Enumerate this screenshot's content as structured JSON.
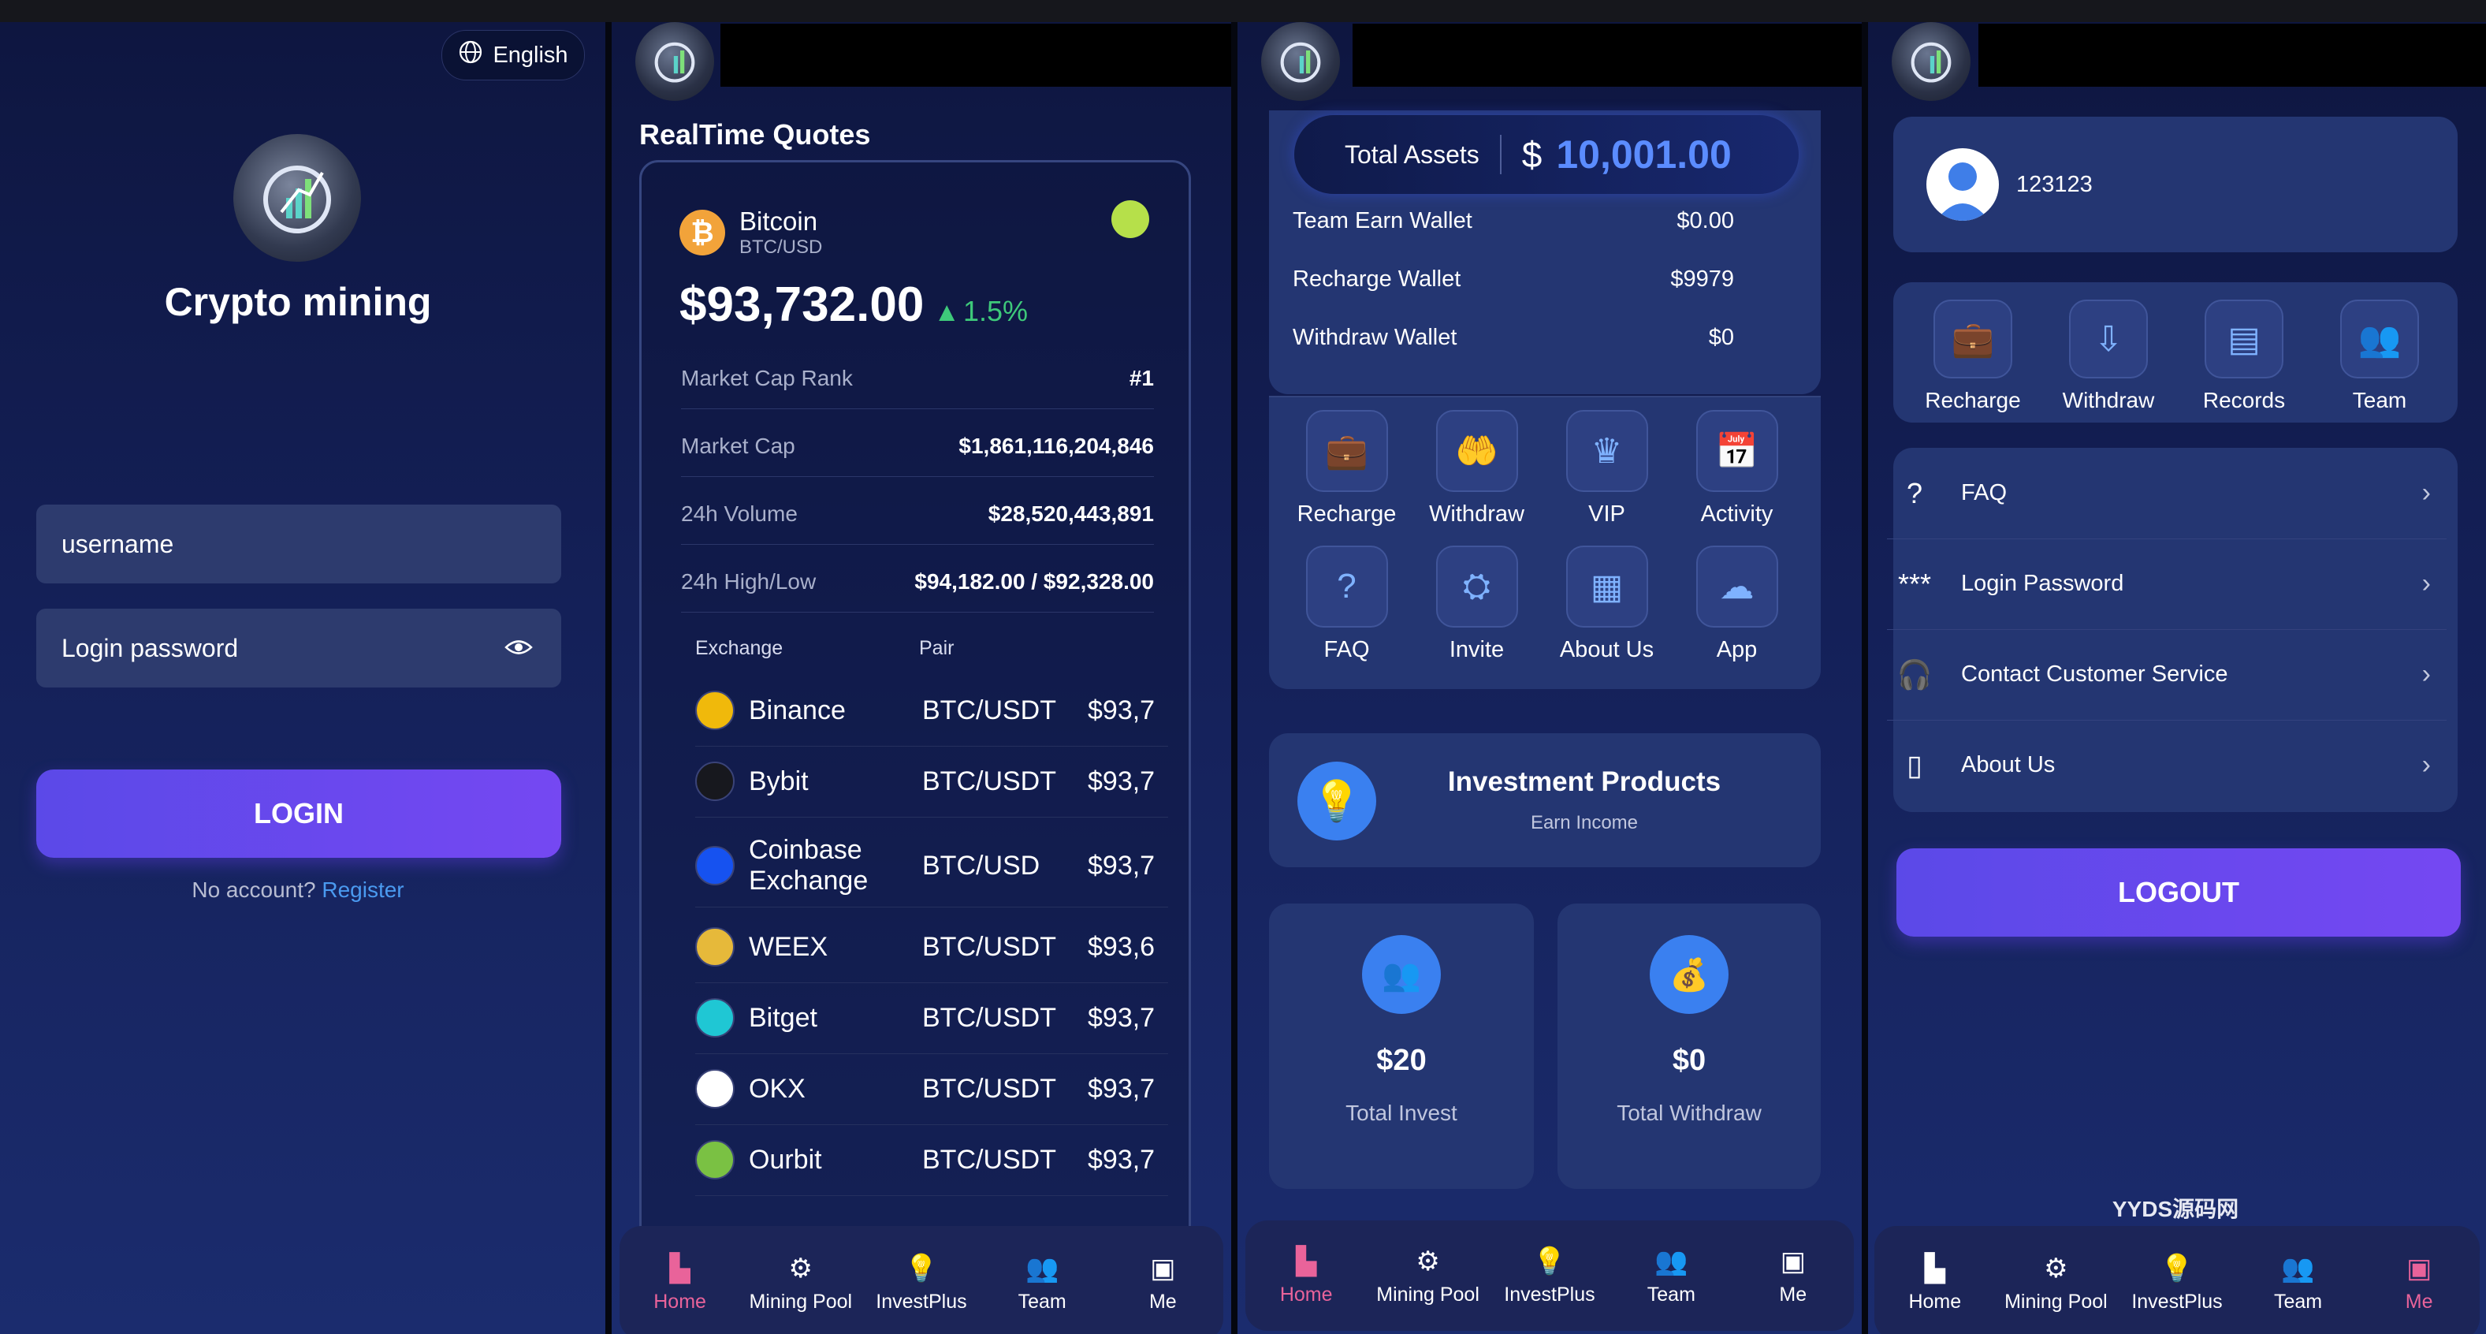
{
  "login": {
    "language": "English",
    "app_title": "Crypto mining",
    "username_placeholder": "username",
    "password_placeholder": "Login password",
    "login_button": "LOGIN",
    "no_account": "No account?",
    "register_link": "Register"
  },
  "quotes": {
    "heading": "RealTime Quotes",
    "coin_name": "Bitcoin",
    "coin_pair": "BTC/USD",
    "price": "$93,732.00",
    "change": "1.5%",
    "stats": [
      {
        "label": "Market Cap Rank",
        "value": "#1"
      },
      {
        "label": "Market Cap",
        "value": "$1,861,116,204,846"
      },
      {
        "label": "24h Volume",
        "value": "$28,520,443,891"
      },
      {
        "label": "24h High/Low",
        "value": "$94,182.00 / $92,328.00"
      }
    ],
    "exchange_header": "Exchange",
    "pair_header": "Pair",
    "exchanges": [
      {
        "name": "Binance",
        "name2": "",
        "pair": "BTC/USDT",
        "price": "$93,7",
        "icon": "binance-icon",
        "color": "#f0b90b"
      },
      {
        "name": "Bybit",
        "name2": "",
        "pair": "BTC/USDT",
        "price": "$93,7",
        "icon": "bybit-icon",
        "color": "#17181e"
      },
      {
        "name": "Coinbase",
        "name2": "Exchange",
        "pair": "BTC/USD",
        "price": "$93,7",
        "icon": "coinbase-icon",
        "color": "#1652f0"
      },
      {
        "name": "WEEX",
        "name2": "",
        "pair": "BTC/USDT",
        "price": "$93,6",
        "icon": "weex-icon",
        "color": "#e6b93a"
      },
      {
        "name": "Bitget",
        "name2": "",
        "pair": "BTC/USDT",
        "price": "$93,7",
        "icon": "bitget-icon",
        "color": "#1fc7d4"
      },
      {
        "name": "OKX",
        "name2": "",
        "pair": "BTC/USDT",
        "price": "$93,7",
        "icon": "okx-icon",
        "color": "#ffffff"
      },
      {
        "name": "Ourbit",
        "name2": "",
        "pair": "BTC/USDT",
        "price": "$93,7",
        "icon": "ourbit-icon",
        "color": "#7ac143"
      }
    ]
  },
  "nav": {
    "home": "Home",
    "mining_pool": "Mining Pool",
    "investplus": "InvestPlus",
    "team": "Team",
    "me": "Me"
  },
  "home": {
    "total_assets_label": "Total Assets",
    "currency": "$",
    "total_assets_value": "10,001.00",
    "wallets": [
      {
        "label": "Team Earn Wallet",
        "value": "$0.00"
      },
      {
        "label": "Recharge Wallet",
        "value": "$9979"
      },
      {
        "label": "Withdraw Wallet",
        "value": "$0"
      }
    ],
    "actions": [
      {
        "label": "Recharge",
        "icon": "wallet-bag-icon"
      },
      {
        "label": "Withdraw",
        "icon": "hand-money-icon"
      },
      {
        "label": "VIP",
        "icon": "crown-icon"
      },
      {
        "label": "Activity",
        "icon": "calendar-star-icon"
      },
      {
        "label": "FAQ",
        "icon": "question-icon"
      },
      {
        "label": "Invite",
        "icon": "invite-users-icon"
      },
      {
        "label": "About Us",
        "icon": "building-icon"
      },
      {
        "label": "App",
        "icon": "cloud-download-icon"
      }
    ],
    "invest_title": "Investment Products",
    "invest_sub": "Earn Income",
    "total_invest_value": "$20",
    "total_invest_label": "Total Invest",
    "total_withdraw_value": "$0",
    "total_withdraw_label": "Total Withdraw"
  },
  "me": {
    "username": "123123",
    "quick": [
      {
        "label": "Recharge",
        "icon": "wallet-bag-icon"
      },
      {
        "label": "Withdraw",
        "icon": "withdraw-icon"
      },
      {
        "label": "Records",
        "icon": "records-icon"
      },
      {
        "label": "Team",
        "icon": "team-icon"
      }
    ],
    "menu": [
      {
        "label": "FAQ",
        "icon": "question-circle-icon"
      },
      {
        "label": "Login Password",
        "icon": "password-icon"
      },
      {
        "label": "Contact Customer Service",
        "icon": "headset-icon"
      },
      {
        "label": "About Us",
        "icon": "book-icon"
      }
    ],
    "logout": "LOGOUT",
    "watermark": "YYDS源码网"
  }
}
